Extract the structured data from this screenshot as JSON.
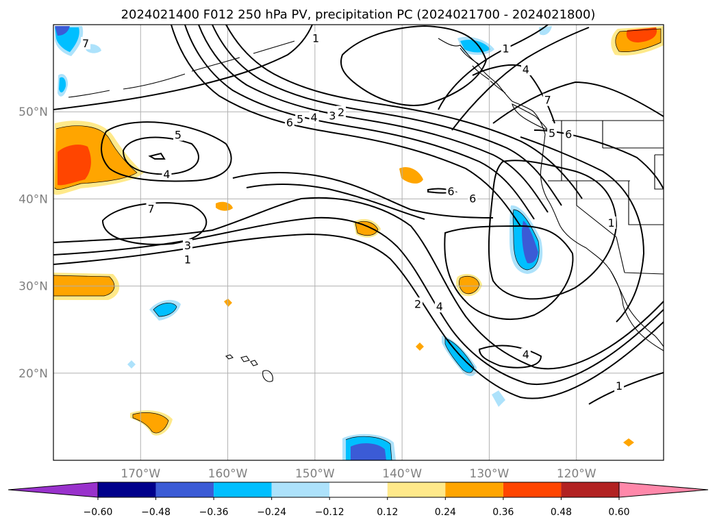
{
  "chart_data": {
    "type": "contour map",
    "title": "2024021400 F012 250 hPa PV, precipitation PC (2024021700 - 2024021800)",
    "x_axis": {
      "tick_labels": [
        "170°W",
        "160°W",
        "150°W",
        "140°W",
        "130°W",
        "120°W"
      ],
      "lon_values": [
        -170,
        -160,
        -150,
        -140,
        -130,
        -120
      ],
      "range": [
        -180,
        -110
      ]
    },
    "y_axis": {
      "tick_labels": [
        "50°N",
        "40°N",
        "30°N",
        "20°N"
      ],
      "lat_values": [
        50,
        40,
        30,
        20
      ],
      "range": [
        10,
        60
      ]
    },
    "grid": true,
    "colorbar": {
      "orientation": "horizontal",
      "extend": "both",
      "tick_labels": [
        "−0.60",
        "−0.48",
        "−0.36",
        "−0.24",
        "−0.12",
        "0.12",
        "0.24",
        "0.36",
        "0.48",
        "0.60"
      ],
      "levels": [
        -0.6,
        -0.48,
        -0.36,
        -0.24,
        -0.12,
        0.12,
        0.24,
        0.36,
        0.48,
        0.6
      ],
      "colors": [
        "#9932cc",
        "#00008b",
        "#3b5bd6",
        "#00bfff",
        "#ade2fb",
        "#ffffff",
        "#ffe98a",
        "#ffa500",
        "#ff4500",
        "#b22222",
        "#ff88aa"
      ]
    },
    "pv_contour_labels": [
      {
        "text": "1",
        "lon": -164.6,
        "lat": 33.0
      },
      {
        "text": "3",
        "lon": -164.6,
        "lat": 34.6
      },
      {
        "text": "7",
        "lon": -168.8,
        "lat": 38.8
      },
      {
        "text": "4",
        "lon": -167.0,
        "lat": 42.8
      },
      {
        "text": "5",
        "lon": -165.7,
        "lat": 47.3
      },
      {
        "text": "6",
        "lon": -152.9,
        "lat": 48.7
      },
      {
        "text": "5",
        "lon": -151.7,
        "lat": 49.1
      },
      {
        "text": "4",
        "lon": -150.1,
        "lat": 49.3
      },
      {
        "text": "3",
        "lon": -148.0,
        "lat": 49.5
      },
      {
        "text": "2",
        "lon": -147.0,
        "lat": 49.9
      },
      {
        "text": "1",
        "lon": -149.9,
        "lat": 58.4
      },
      {
        "text": "7",
        "lon": -176.3,
        "lat": 57.8
      },
      {
        "text": "1",
        "lon": -128.1,
        "lat": 57.2
      },
      {
        "text": "4",
        "lon": -125.8,
        "lat": 54.8
      },
      {
        "text": "7",
        "lon": -123.3,
        "lat": 51.3
      },
      {
        "text": "5",
        "lon": -122.8,
        "lat": 47.5
      },
      {
        "text": "6",
        "lon": -120.9,
        "lat": 47.4
      },
      {
        "text": "6",
        "lon": -134.4,
        "lat": 40.8
      },
      {
        "text": "6",
        "lon": -131.9,
        "lat": 40.0
      },
      {
        "text": "1",
        "lon": -116.0,
        "lat": 37.2
      },
      {
        "text": "2",
        "lon": -138.2,
        "lat": 27.9
      },
      {
        "text": "4",
        "lon": -135.7,
        "lat": 27.6
      },
      {
        "text": "4",
        "lon": -125.8,
        "lat": 22.1
      },
      {
        "text": "1",
        "lon": -115.1,
        "lat": 18.5
      }
    ]
  }
}
